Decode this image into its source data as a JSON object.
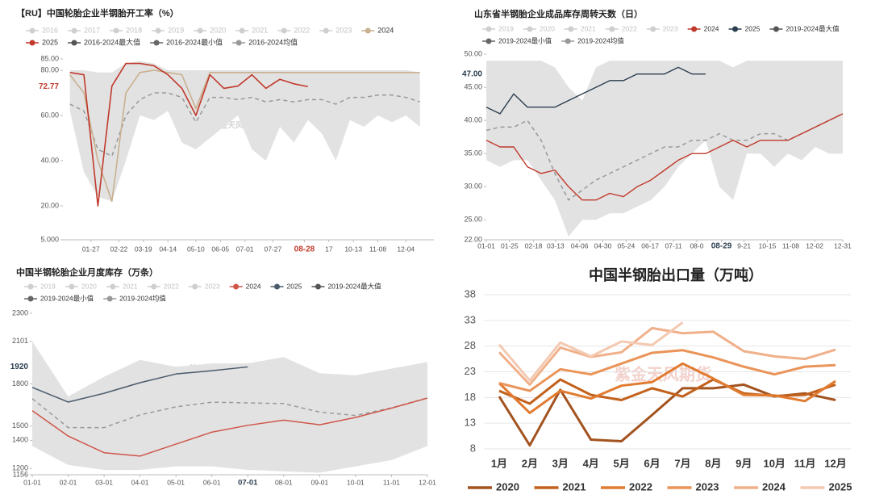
{
  "chart_data": [
    {
      "type": "line",
      "title": "【RU】中国轮胎企业半钢胎开工率（%）",
      "watermark": "紫金天风期货",
      "legend": "top",
      "axis_line": true,
      "grid": false,
      "inactive_series": [
        "2016",
        "2017",
        "2018",
        "2019",
        "2020",
        "2021",
        "2022",
        "2023"
      ],
      "x": [
        1,
        3,
        5,
        7,
        9,
        11,
        13,
        15,
        17,
        19,
        21,
        23,
        25,
        27,
        29,
        31,
        33,
        35,
        37,
        39,
        41,
        43,
        45,
        47,
        49,
        51
      ],
      "xlim": [
        0,
        53
      ],
      "xticks": [
        {
          "value": 4,
          "label": "01-27"
        },
        {
          "value": 8,
          "label": "02-22"
        },
        {
          "value": 11.5,
          "label": "03-19"
        },
        {
          "value": 15,
          "label": "04-14"
        },
        {
          "value": 19,
          "label": "05-10"
        },
        {
          "value": 22.5,
          "label": "06-05"
        },
        {
          "value": 26,
          "label": "07-01"
        },
        {
          "value": 30,
          "label": "07-27"
        },
        {
          "value": 34.5,
          "label": "08-28",
          "highlight": true
        },
        {
          "value": 38,
          "label": "17"
        },
        {
          "value": 41.5,
          "label": "10-13"
        },
        {
          "value": 45,
          "label": "11-08"
        },
        {
          "value": 49,
          "label": "12-04"
        }
      ],
      "ylim": [
        5,
        85
      ],
      "yticks": [
        {
          "value": 5,
          "label": "5.000"
        },
        {
          "value": 20,
          "label": "20.00"
        },
        {
          "value": 40,
          "label": "40.00"
        },
        {
          "value": 60,
          "label": "60.00"
        },
        {
          "value": 80,
          "label": "80.00"
        },
        {
          "value": 85,
          "label": "85.00"
        }
      ],
      "current_value": 72.77,
      "current_value_color": "#c0392b",
      "band_color": "#e2e2e2",
      "series": [
        {
          "name": "2024",
          "color": "#c9b08f",
          "style": "solid",
          "values": [
            78,
            70,
            40,
            22,
            70,
            79,
            80,
            79,
            78,
            63,
            79,
            79,
            79,
            79,
            79,
            79,
            79,
            79,
            79,
            79,
            79,
            79,
            79,
            79,
            79,
            79
          ]
        },
        {
          "name": "2025",
          "color": "#c0392b",
          "style": "solid",
          "values": [
            79,
            78,
            20,
            73,
            83,
            83,
            82,
            78,
            72,
            60,
            78,
            72,
            73,
            78,
            72,
            76,
            74,
            72.77,
            null,
            null,
            null,
            null,
            null,
            null,
            null,
            null
          ]
        },
        {
          "name": "2016-2024最大值",
          "color": "#555555",
          "style": "band_upper",
          "values": [
            80,
            80,
            79,
            79,
            83,
            84,
            83,
            80,
            80,
            80,
            80,
            80,
            80,
            80,
            80,
            80,
            80,
            80,
            80,
            80,
            80,
            80,
            80,
            80,
            80,
            79
          ]
        },
        {
          "name": "2016-2024最小值",
          "color": "#666666",
          "style": "band_lower",
          "values": [
            62,
            35,
            24,
            22,
            40,
            60,
            58,
            62,
            48,
            45,
            50,
            55,
            60,
            45,
            40,
            55,
            48,
            58,
            52,
            40,
            58,
            55,
            60,
            57,
            60,
            55
          ]
        },
        {
          "name": "2016-2024均值",
          "color": "#999999",
          "style": "dashed",
          "values": [
            65,
            62,
            45,
            42,
            60,
            67,
            70,
            70,
            68,
            57,
            68,
            68,
            67,
            68,
            66,
            67,
            66,
            67,
            67,
            65,
            68,
            68,
            69,
            69,
            68,
            66
          ]
        }
      ]
    },
    {
      "type": "line",
      "title": "山东省半钢胎企业成品库存周转天数（日）",
      "watermark": "紫金天风期货",
      "legend": "top",
      "axis_line": true,
      "grid": false,
      "inactive_series": [
        "2019",
        "2020",
        "2021",
        "2022",
        "2023"
      ],
      "x": [
        0,
        2,
        4,
        6,
        8,
        10,
        12,
        14,
        16,
        18,
        20,
        22,
        24,
        26,
        28,
        30,
        32,
        34,
        36,
        38,
        40,
        42,
        44,
        46,
        48,
        50,
        52
      ],
      "xlim": [
        0,
        52
      ],
      "xticks": [
        {
          "value": 0,
          "label": "01-01"
        },
        {
          "value": 3.4,
          "label": "01-25"
        },
        {
          "value": 6.9,
          "label": "02-18"
        },
        {
          "value": 10.1,
          "label": "03-13"
        },
        {
          "value": 13.6,
          "label": "04-06"
        },
        {
          "value": 17,
          "label": "04-30"
        },
        {
          "value": 20.4,
          "label": "05-24"
        },
        {
          "value": 23.9,
          "label": "06-17"
        },
        {
          "value": 27.3,
          "label": "07-11"
        },
        {
          "value": 30.7,
          "label": "08-0"
        },
        {
          "value": 34.3,
          "label": "08-29",
          "highlight": true
        },
        {
          "value": 37.6,
          "label": "9-21"
        },
        {
          "value": 41,
          "label": "10-15"
        },
        {
          "value": 44.4,
          "label": "11-08"
        },
        {
          "value": 47.9,
          "label": "12-02"
        },
        {
          "value": 52,
          "label": "12-31"
        }
      ],
      "ylim": [
        22,
        50
      ],
      "yticks": [
        {
          "value": 22,
          "label": "22.00"
        },
        {
          "value": 25,
          "label": "25.00"
        },
        {
          "value": 30,
          "label": "30.00"
        },
        {
          "value": 35,
          "label": "35.00"
        },
        {
          "value": 40,
          "label": "40.00"
        },
        {
          "value": 45,
          "label": "45.00"
        },
        {
          "value": 50,
          "label": "50.00"
        }
      ],
      "current_value": {
        "value": 47,
        "label": "47.00"
      },
      "current_value_color": "#2c3e50",
      "band_color": "#e2e2e2",
      "series": [
        {
          "name": "2024",
          "color": "#c0392b",
          "style": "solid",
          "values": [
            37,
            36,
            36,
            33,
            32,
            32.5,
            30,
            28,
            28,
            29,
            28.5,
            30,
            31,
            32.5,
            34,
            35,
            35,
            36,
            37,
            36,
            37,
            37,
            37,
            38,
            39,
            40,
            41
          ]
        },
        {
          "name": "2025",
          "color": "#2c3e50",
          "style": "solid",
          "values": [
            42,
            41,
            44,
            42,
            42,
            42,
            43,
            44,
            45,
            46,
            46,
            47,
            47,
            47,
            48,
            47,
            47,
            null,
            null,
            null,
            null,
            null,
            null,
            null,
            null,
            null,
            null
          ]
        },
        {
          "name": "2019-2024最大值",
          "color": "#555555",
          "style": "band_upper",
          "values": [
            49,
            49,
            49,
            49,
            49,
            48,
            45,
            43,
            48,
            49,
            49,
            49,
            49,
            49,
            49,
            49,
            49,
            49,
            48,
            49,
            49,
            49,
            49,
            49,
            49,
            49,
            49
          ]
        },
        {
          "name": "2019-2024最小值",
          "color": "#666666",
          "style": "band_lower",
          "values": [
            34,
            33,
            34,
            34,
            31,
            28,
            22.5,
            25,
            25,
            26,
            26,
            27,
            28,
            30,
            33,
            35,
            37,
            30,
            28,
            35,
            35,
            33,
            35,
            34,
            36,
            35,
            35
          ]
        },
        {
          "name": "2019-2024均值",
          "color": "#999999",
          "style": "dashed",
          "values": [
            38.5,
            39,
            39,
            40,
            37,
            32,
            28,
            29.5,
            31,
            32,
            33,
            34,
            35,
            36,
            36,
            37,
            37,
            38,
            37,
            37,
            38,
            38,
            37,
            38,
            39,
            40,
            41
          ]
        }
      ]
    },
    {
      "type": "line",
      "title": "中国半钢轮胎企业月度库存（万条）",
      "watermark": "紫金天风期货",
      "legend": "top",
      "axis_line": true,
      "grid": false,
      "inactive_series": [
        "2019",
        "2020",
        "2021",
        "2022",
        "2023"
      ],
      "categories": [
        "01-01",
        "02-01",
        "03-01",
        "04-01",
        "05-01",
        "06-01",
        "07-01",
        "08-01",
        "09-01",
        "10-01",
        "11-01",
        "12-01"
      ],
      "highlight_category_index": 6,
      "ylim": [
        1156,
        2300
      ],
      "yticks": [
        1156,
        1200,
        1400,
        1500,
        1800,
        2101,
        2300
      ],
      "current_value": 1920,
      "current_value_color": "#2c3e50",
      "band_color": "#e2e2e2",
      "series": [
        {
          "name": "2024",
          "color": "#d0564a",
          "style": "solid",
          "values": [
            1610,
            1430,
            1312,
            1288,
            1373,
            1458,
            1506,
            1543,
            1510,
            1562,
            1628,
            1699
          ]
        },
        {
          "name": "2025",
          "color": "#4a5a6a",
          "style": "solid",
          "values": [
            1775,
            1671,
            1733,
            1808,
            1870,
            1893,
            1920,
            null,
            null,
            null,
            null,
            null
          ]
        },
        {
          "name": "2019-2024最大值",
          "color": "#555555",
          "style": "band_upper",
          "values": [
            2101,
            1710,
            1850,
            1970,
            1920,
            1945,
            1945,
            1990,
            1875,
            1860,
            1908,
            1955
          ]
        },
        {
          "name": "2019-2024最小值",
          "color": "#666666",
          "style": "band_lower",
          "values": [
            1360,
            1225,
            1190,
            1190,
            1215,
            1215,
            1190,
            1180,
            1170,
            1215,
            1260,
            1360
          ]
        },
        {
          "name": "2019-2024均值",
          "color": "#999999",
          "style": "dashed",
          "values": [
            1695,
            1490,
            1490,
            1580,
            1637,
            1670,
            1665,
            1660,
            1600,
            1576,
            1630,
            1700
          ]
        }
      ]
    },
    {
      "type": "line",
      "title": "中国半钢胎出口量（万吨）",
      "watermark": "紫金天风期货",
      "legend": "bottom",
      "axis_line": false,
      "grid": true,
      "boundary_gap": true,
      "categories": [
        "1月",
        "2月",
        "3月",
        "4月",
        "5月",
        "6月",
        "7月",
        "8月",
        "9月",
        "10月",
        "11月",
        "12月"
      ],
      "ylim": [
        8,
        38
      ],
      "yticks": [
        8,
        13,
        18,
        23,
        28,
        33,
        38
      ],
      "series": [
        {
          "name": "2020",
          "color": "#a3531f",
          "style": "solid",
          "values": [
            18.2,
            8.7,
            19.5,
            9.8,
            9.5,
            14.6,
            19.8,
            19.8,
            20.5,
            18.2,
            18.8,
            17.5
          ]
        },
        {
          "name": "2021",
          "color": "#c2611c",
          "style": "solid",
          "values": [
            19.3,
            16.8,
            21.5,
            18.5,
            17.5,
            19.8,
            18.2,
            21.5,
            18.8,
            18.3,
            18.5,
            20.5
          ]
        },
        {
          "name": "2022",
          "color": "#e07b30",
          "style": "solid",
          "values": [
            20.8,
            15,
            19.3,
            17.8,
            20.3,
            21,
            24.6,
            21.7,
            18.5,
            18.4,
            17.3,
            21.2
          ]
        },
        {
          "name": "2023",
          "color": "#ea9459",
          "style": "solid",
          "values": [
            20.8,
            19.3,
            23.5,
            22.5,
            24.6,
            26.7,
            27.2,
            25.8,
            24,
            22.5,
            24,
            24.3
          ]
        },
        {
          "name": "2024",
          "color": "#f0b08a",
          "style": "solid",
          "values": [
            26.8,
            20.5,
            27.7,
            25.9,
            26.8,
            31.5,
            30.5,
            30.8,
            27,
            26,
            25.5,
            27.3
          ]
        },
        {
          "name": "2025",
          "color": "#f4c9b2",
          "style": "solid",
          "values": [
            28.3,
            21.3,
            28.7,
            26,
            28.9,
            28.2,
            32.6,
            null,
            null,
            null,
            null,
            null
          ]
        }
      ]
    }
  ]
}
